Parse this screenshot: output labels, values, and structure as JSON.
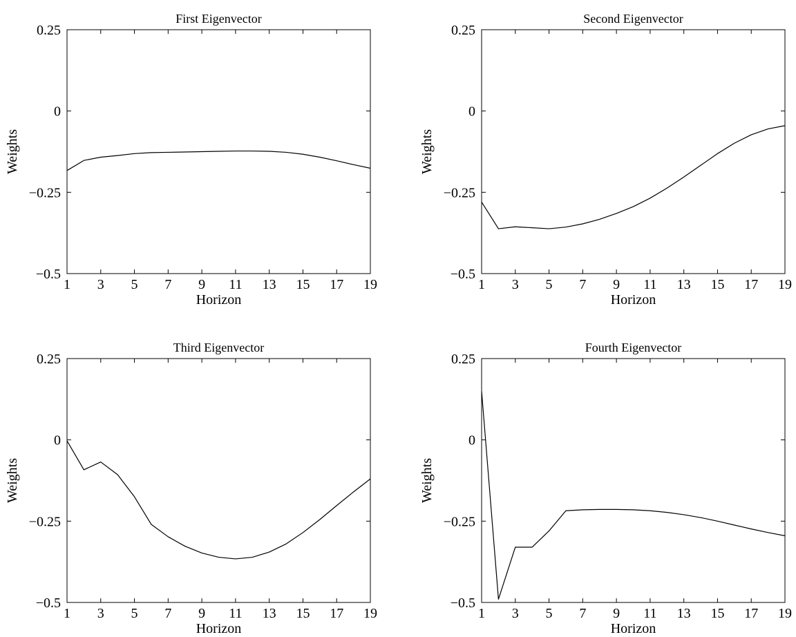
{
  "chart_data": [
    {
      "type": "line",
      "title": "First Eigenvector",
      "xlabel": "Horizon",
      "ylabel": "Weights",
      "xlim": [
        1,
        19
      ],
      "ylim": [
        -0.5,
        0.25
      ],
      "xticks": [
        "1",
        "3",
        "5",
        "7",
        "9",
        "11",
        "13",
        "15",
        "17",
        "19"
      ],
      "yticks": [
        "0.25",
        "0",
        "−0.25",
        "−0.5"
      ],
      "x": [
        1,
        2,
        3,
        4,
        5,
        6,
        7,
        8,
        9,
        10,
        11,
        12,
        13,
        14,
        15,
        16,
        17,
        18,
        19
      ],
      "y": [
        -0.183,
        -0.152,
        -0.142,
        -0.137,
        -0.131,
        -0.128,
        -0.127,
        -0.126,
        -0.125,
        -0.124,
        -0.123,
        -0.123,
        -0.124,
        -0.127,
        -0.133,
        -0.142,
        -0.153,
        -0.165,
        -0.176
      ]
    },
    {
      "type": "line",
      "title": "Second Eigenvector",
      "xlabel": "Horizon",
      "ylabel": "Weights",
      "xlim": [
        1,
        19
      ],
      "ylim": [
        -0.5,
        0.25
      ],
      "xticks": [
        "1",
        "3",
        "5",
        "7",
        "9",
        "11",
        "13",
        "15",
        "17",
        "19"
      ],
      "yticks": [
        "0.25",
        "0",
        "−0.25",
        "−0.5"
      ],
      "x": [
        1,
        2,
        3,
        4,
        5,
        6,
        7,
        8,
        9,
        10,
        11,
        12,
        13,
        14,
        15,
        16,
        17,
        18,
        19
      ],
      "y": [
        -0.28,
        -0.362,
        -0.356,
        -0.359,
        -0.362,
        -0.357,
        -0.347,
        -0.333,
        -0.315,
        -0.294,
        -0.268,
        -0.237,
        -0.203,
        -0.167,
        -0.131,
        -0.099,
        -0.073,
        -0.055,
        -0.045
      ]
    },
    {
      "type": "line",
      "title": "Third Eigenvector",
      "xlabel": "Horizon",
      "ylabel": "Weights",
      "xlim": [
        1,
        19
      ],
      "ylim": [
        -0.5,
        0.25
      ],
      "xticks": [
        "1",
        "3",
        "5",
        "7",
        "9",
        "11",
        "13",
        "15",
        "17",
        "19"
      ],
      "yticks": [
        "0.25",
        "0",
        "−0.25",
        "−0.5"
      ],
      "x": [
        1,
        2,
        3,
        4,
        5,
        6,
        7,
        8,
        9,
        10,
        11,
        12,
        13,
        14,
        15,
        16,
        17,
        18,
        19
      ],
      "y": [
        -0.003,
        -0.092,
        -0.068,
        -0.107,
        -0.175,
        -0.26,
        -0.298,
        -0.327,
        -0.348,
        -0.361,
        -0.366,
        -0.361,
        -0.345,
        -0.32,
        -0.285,
        -0.245,
        -0.202,
        -0.16,
        -0.12
      ]
    },
    {
      "type": "line",
      "title": "Fourth Eigenvector",
      "xlabel": "Horizon",
      "ylabel": "Weights",
      "xlim": [
        1,
        19
      ],
      "ylim": [
        -0.5,
        0.25
      ],
      "xticks": [
        "1",
        "3",
        "5",
        "7",
        "9",
        "11",
        "13",
        "15",
        "17",
        "19"
      ],
      "yticks": [
        "0.25",
        "0",
        "−0.25",
        "−0.5"
      ],
      "x": [
        1,
        2,
        3,
        4,
        5,
        6,
        7,
        8,
        9,
        10,
        11,
        12,
        13,
        14,
        15,
        16,
        17,
        18,
        19
      ],
      "y": [
        0.15,
        -0.49,
        -0.33,
        -0.33,
        -0.28,
        -0.218,
        -0.215,
        -0.214,
        -0.214,
        -0.215,
        -0.218,
        -0.223,
        -0.23,
        -0.239,
        -0.25,
        -0.262,
        -0.274,
        -0.285,
        -0.295
      ]
    }
  ]
}
